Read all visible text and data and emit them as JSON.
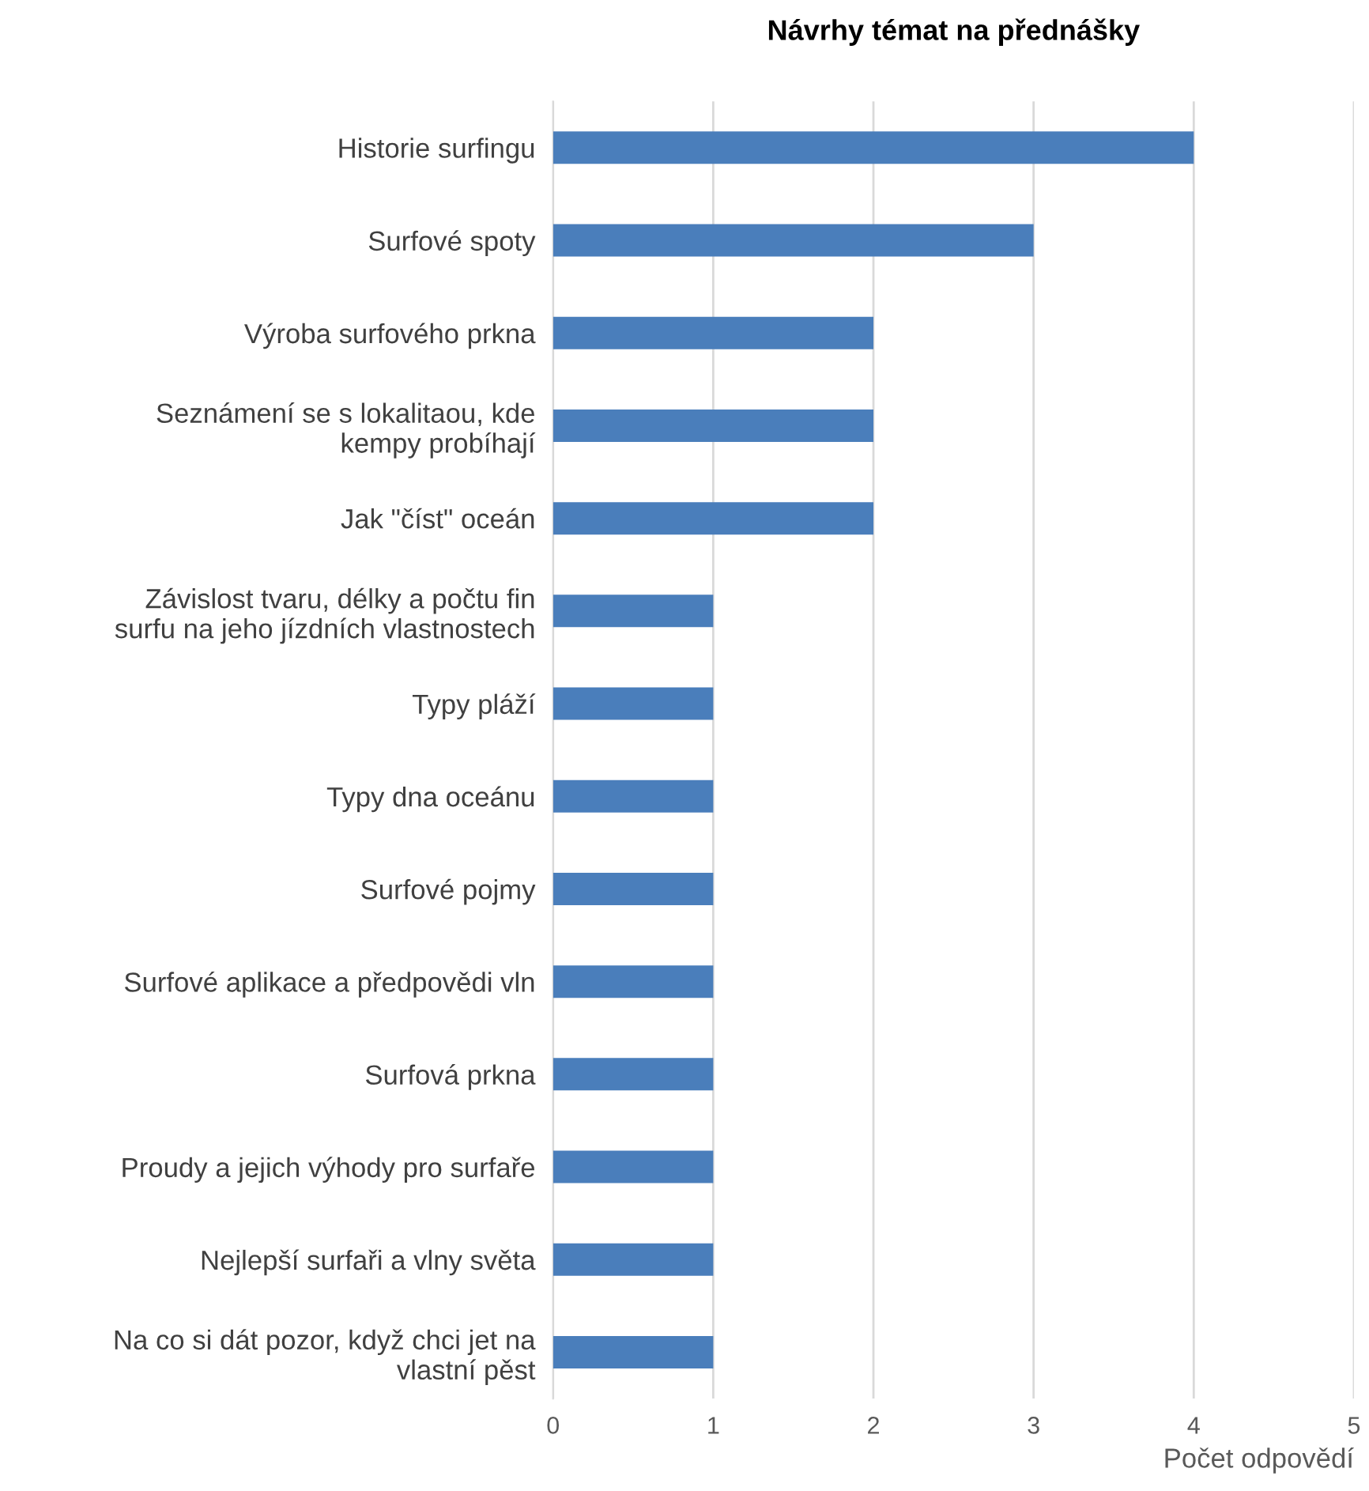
{
  "chart_data": {
    "type": "bar",
    "orientation": "horizontal",
    "title": "Návrhy témat na přednášky",
    "xlabel": "Počet odpovědí",
    "categories": [
      "Historie surfingu",
      "Surfové spoty",
      "Výroba surfového prkna",
      "Seznámení se s lokalitaou, kde\nkempy probíhají",
      "Jak \"číst\" oceán",
      "Závislost tvaru, délky a počtu fin\nsurfu na jeho jízdních vlastnostech",
      "Typy pláží",
      "Typy dna oceánu",
      "Surfové pojmy",
      "Surfové aplikace a předpovědi vln",
      "Surfová prkna",
      "Proudy a jejich výhody pro surfaře",
      "Nejlepší surfaři a vlny světa",
      "Na co si dát pozor, když chci jet na\nvlastní pěst"
    ],
    "values": [
      4,
      3,
      2,
      2,
      2,
      1,
      1,
      1,
      1,
      1,
      1,
      1,
      1,
      1
    ],
    "color": "#4a7ebb",
    "xlim": [
      0,
      5
    ],
    "xticks": [
      0,
      1,
      2,
      3,
      4,
      5
    ],
    "grid": "x",
    "legend": false
  }
}
